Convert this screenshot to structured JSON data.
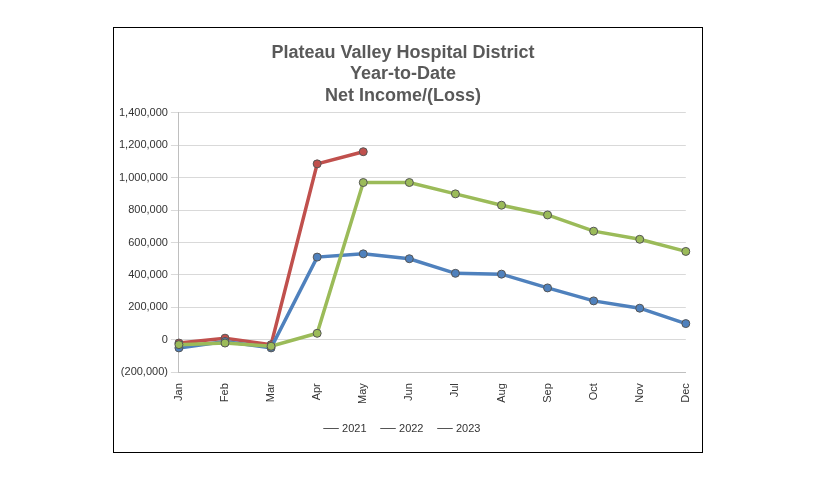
{
  "chart_data": {
    "type": "line",
    "title": [
      "Plateau Valley Hospital District",
      "Year-to-Date",
      "Net Income/(Loss)"
    ],
    "categories": [
      "Jan",
      "Feb",
      "Mar",
      "Apr",
      "May",
      "Jun",
      "Jul",
      "Aug",
      "Sep",
      "Oct",
      "Nov",
      "Dec"
    ],
    "series": [
      {
        "name": "2021",
        "color": "#9bbb59",
        "values": [
          -30000,
          -20000,
          -40000,
          40000,
          970000,
          970000,
          900000,
          830000,
          770000,
          670000,
          620000,
          545000
        ]
      },
      {
        "name": "2022",
        "color": "#4f81bd",
        "values": [
          -50000,
          -10000,
          -50000,
          510000,
          530000,
          500000,
          410000,
          405000,
          320000,
          240000,
          195000,
          100000
        ]
      },
      {
        "name": "2023",
        "color": "#c0504d",
        "values": [
          -20000,
          10000,
          -30000,
          1085000,
          1160000,
          null,
          null,
          null,
          null,
          null,
          null,
          null
        ]
      }
    ],
    "ylim": [
      -200000,
      1400000
    ],
    "yticks": [
      {
        "value": -200000,
        "label": "(200,000)"
      },
      0,
      {
        "value": 200000,
        "label": "200,000"
      },
      {
        "value": 400000,
        "label": "400,000"
      },
      {
        "value": 600000,
        "label": "600,000"
      },
      {
        "value": 800000,
        "label": "800,000"
      },
      {
        "value": 1000000,
        "label": "1,000,000"
      },
      {
        "value": 1200000,
        "label": "1,200,000"
      },
      {
        "value": 1400000,
        "label": "1,400,000"
      }
    ],
    "grid": true,
    "legend": "bottom",
    "marker": "circle",
    "line_style": "solid"
  }
}
